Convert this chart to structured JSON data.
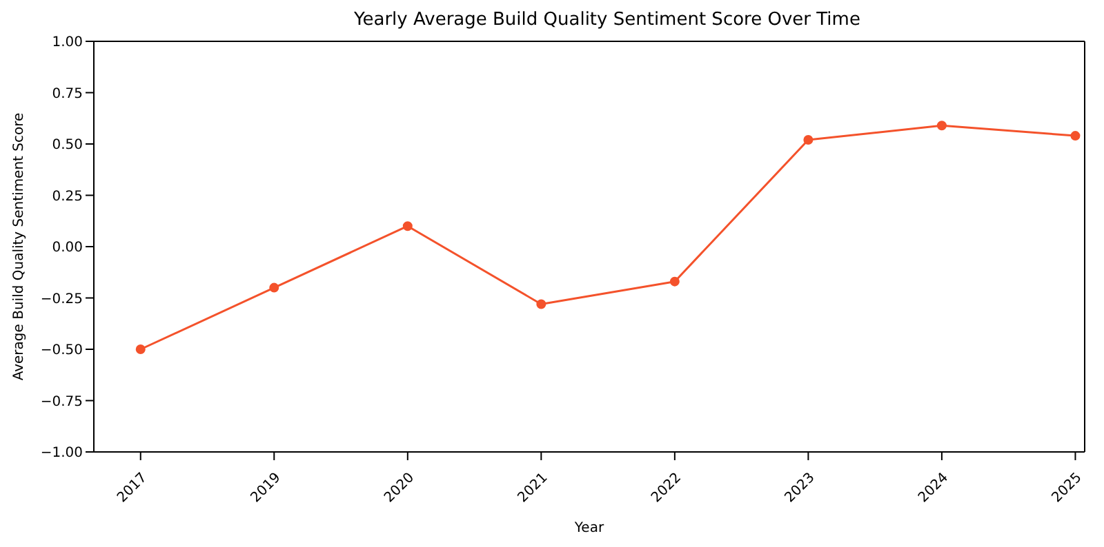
{
  "chart_data": {
    "type": "line",
    "title": "Yearly Average Build Quality Sentiment Score Over Time",
    "xlabel": "Year",
    "ylabel": "Average Build Quality Sentiment Score",
    "categories": [
      "2017",
      "2019",
      "2020",
      "2021",
      "2022",
      "2023",
      "2024",
      "2025"
    ],
    "series": [
      {
        "color": "#f4522b",
        "values": [
          -0.5,
          -0.2,
          0.1,
          -0.28,
          -0.17,
          0.52,
          0.59,
          0.54
        ]
      }
    ],
    "ylim": [
      -1,
      1
    ],
    "yticks": [
      {
        "value": -1,
        "label": "−1.00"
      },
      {
        "value": -0.75,
        "label": "−0.75"
      },
      {
        "value": -0.5,
        "label": "−0.50"
      },
      {
        "value": -0.25,
        "label": "−0.25"
      },
      {
        "value": 0,
        "label": "0.00"
      },
      {
        "value": 0.25,
        "label": "0.25"
      },
      {
        "value": 0.5,
        "label": "0.50"
      },
      {
        "value": 0.75,
        "label": "0.75"
      },
      {
        "value": 1,
        "label": "1.00"
      }
    ],
    "grid": false,
    "legend": false,
    "marker": "circle",
    "line_style": "solid"
  }
}
